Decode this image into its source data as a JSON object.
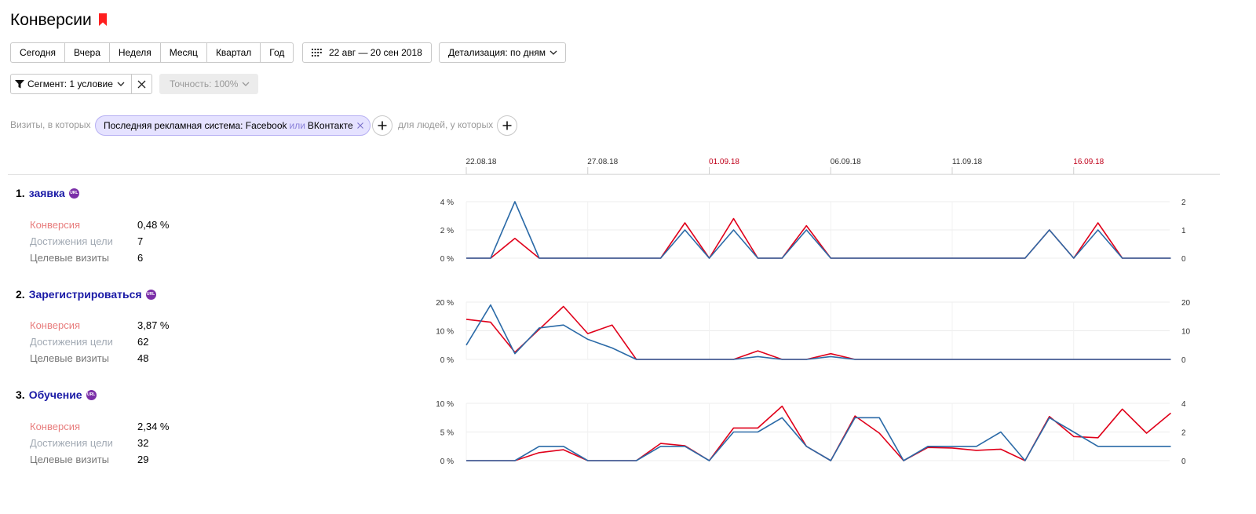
{
  "page": {
    "title": "Конверсии",
    "colors": {
      "accent_red": "#ff1f1f",
      "goal_link": "#1a1aa6",
      "series_conversion": "#e0001a",
      "series_visits": "#2b6aa7",
      "chip_bg": "#e5e2ff",
      "url_badge": "#7b2fa8",
      "weekend_tick": "#c0001a"
    }
  },
  "toolbar": {
    "periods": [
      "Сегодня",
      "Вчера",
      "Неделя",
      "Месяц",
      "Квартал",
      "Год"
    ],
    "date_range": "22 авг — 20 сен 2018",
    "detail": "Детализация: по дням"
  },
  "segment": {
    "label": "Сегмент: 1 условие",
    "accuracy": "Точность: 100%",
    "visits_prefix": "Визиты, в которых",
    "chip_condition": "Последняя рекламная система: Facebook",
    "chip_or": "или",
    "chip_value2": "ВКонтакте",
    "people_label": "для людей, у которых"
  },
  "metric_labels": {
    "conversion": "Конверсия",
    "achievements": "Достижения цели",
    "visits": "Целевые визиты"
  },
  "goals": [
    {
      "number": "1.",
      "name": "заявка",
      "badge": "URL",
      "conversion": "0,48 %",
      "achievements": "7",
      "visits": "6"
    },
    {
      "number": "2.",
      "name": "Зарегистрироваться",
      "badge": "URL",
      "conversion": "3,87 %",
      "achievements": "62",
      "visits": "48"
    },
    {
      "number": "3.",
      "name": "Обучение",
      "badge": "URL",
      "conversion": "2,34 %",
      "achievements": "32",
      "visits": "29"
    }
  ],
  "chart_data": [
    {
      "type": "line",
      "x_ticks": [
        {
          "label": "22.08.18",
          "index": 0,
          "weekend": false
        },
        {
          "label": "27.08.18",
          "index": 5,
          "weekend": false
        },
        {
          "label": "01.09.18",
          "index": 10,
          "weekend": true
        },
        {
          "label": "06.09.18",
          "index": 15,
          "weekend": false
        },
        {
          "label": "11.09.18",
          "index": 20,
          "weekend": false
        },
        {
          "label": "16.09.18",
          "index": 25,
          "weekend": true
        }
      ],
      "n_points": 30,
      "left_ticks": [
        "0 %",
        "2 %",
        "4 %"
      ],
      "left_max": 4,
      "right_ticks": [
        "0",
        "1",
        "2"
      ],
      "right_max": 2,
      "series": [
        {
          "axis": "left",
          "color": "#e0001a",
          "values": [
            0,
            0,
            1.4,
            0,
            0,
            0,
            0,
            0,
            0,
            2.5,
            0,
            2.8,
            0,
            0,
            2.3,
            0,
            0,
            0,
            0,
            0,
            0,
            0,
            0,
            0,
            2,
            0,
            2.5,
            0,
            0,
            0
          ]
        },
        {
          "axis": "right",
          "color": "#2b6aa7",
          "values": [
            0,
            0,
            2,
            0,
            0,
            0,
            0,
            0,
            0,
            1,
            0,
            1,
            0,
            0,
            1,
            0,
            0,
            0,
            0,
            0,
            0,
            0,
            0,
            0,
            1,
            0,
            1,
            0,
            0,
            0
          ]
        }
      ]
    },
    {
      "type": "line",
      "n_points": 30,
      "left_ticks": [
        "0 %",
        "10 %",
        "20 %"
      ],
      "left_max": 20,
      "right_ticks": [
        "0",
        "10",
        "20"
      ],
      "right_max": 20,
      "series": [
        {
          "axis": "left",
          "color": "#e0001a",
          "values": [
            14,
            13,
            2.5,
            10.5,
            18.5,
            9,
            12,
            0,
            0,
            0,
            0,
            0,
            3,
            0,
            0,
            2,
            0,
            0,
            0,
            0,
            0,
            0,
            0,
            0,
            0,
            0,
            0,
            0,
            0,
            0
          ]
        },
        {
          "axis": "right",
          "color": "#2b6aa7",
          "values": [
            5,
            19,
            2,
            11,
            12,
            7,
            4,
            0,
            0,
            0,
            0,
            0,
            1,
            0,
            0,
            1,
            0,
            0,
            0,
            0,
            0,
            0,
            0,
            0,
            0,
            0,
            0,
            0,
            0,
            0
          ]
        }
      ]
    },
    {
      "type": "line",
      "n_points": 30,
      "left_ticks": [
        "0 %",
        "5 %",
        "10 %"
      ],
      "left_max": 10,
      "right_ticks": [
        "0",
        "2",
        "4"
      ],
      "right_max": 4,
      "series": [
        {
          "axis": "left",
          "color": "#e0001a",
          "values": [
            0,
            0,
            0,
            1.4,
            1.9,
            0,
            0,
            0,
            3,
            2.6,
            0,
            5.7,
            5.7,
            9.5,
            2.5,
            0,
            7.8,
            4.8,
            0,
            2.3,
            2.2,
            1.8,
            2,
            0,
            7.7,
            4.2,
            4,
            9,
            4.8,
            8.3
          ]
        },
        {
          "axis": "right",
          "color": "#2b6aa7",
          "values": [
            0,
            0,
            0,
            1,
            1,
            0,
            0,
            0,
            1,
            1,
            0,
            2,
            2,
            3,
            1,
            0,
            3,
            3,
            0,
            1,
            1,
            1,
            2,
            0,
            3,
            2,
            1,
            1,
            1,
            1
          ]
        }
      ]
    }
  ]
}
